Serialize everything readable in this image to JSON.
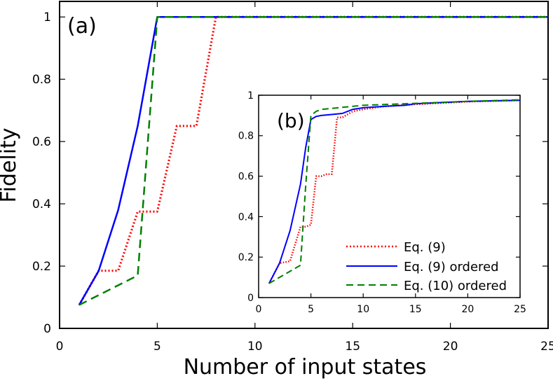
{
  "chart_data": [
    {
      "type": "line",
      "panel_label": "(a)",
      "xlabel": "Number of input states",
      "ylabel": "Fidelity",
      "xlim": [
        0,
        25
      ],
      "ylim": [
        0,
        1.05
      ],
      "x_ticks": [
        "0",
        "5",
        "10",
        "15",
        "20",
        "25"
      ],
      "y_ticks": [
        "0",
        "0.2",
        "0.4",
        "0.6",
        "0.8",
        "1"
      ],
      "series": [
        {
          "key": "eq9",
          "color": "#ff0000",
          "style": "dotted",
          "x": [
            1,
            2,
            3,
            4,
            5,
            6,
            7,
            8,
            9,
            10,
            15,
            20,
            25
          ],
          "y": [
            0.075,
            0.185,
            0.185,
            0.375,
            0.375,
            0.65,
            0.65,
            1.0,
            1.0,
            1.0,
            1.0,
            1.0,
            1.0
          ]
        },
        {
          "key": "eq9_ordered",
          "color": "#0000ff",
          "style": "solid",
          "x": [
            1,
            2,
            3,
            4,
            5,
            10,
            15,
            20,
            25
          ],
          "y": [
            0.075,
            0.185,
            0.38,
            0.65,
            1.0,
            1.0,
            1.0,
            1.0,
            1.0
          ]
        },
        {
          "key": "eq10_ordered",
          "color": "#007f00",
          "style": "dashed",
          "x": [
            1,
            4,
            5,
            10,
            15,
            20,
            25
          ],
          "y": [
            0.075,
            0.17,
            1.0,
            1.0,
            1.0,
            1.0,
            1.0
          ]
        }
      ]
    },
    {
      "type": "line",
      "panel_label": "(b)",
      "xlim": [
        0,
        25
      ],
      "ylim": [
        0,
        1
      ],
      "x_ticks": [
        "0",
        "5",
        "10",
        "15",
        "20",
        "25"
      ],
      "y_ticks": [
        "0",
        "0.2",
        "0.4",
        "0.6",
        "0.8",
        "1"
      ],
      "legend_position": "bottom-right",
      "legend": [
        "Eq. (9)",
        "Eq. (9) ordered",
        "Eq. (10) ordered"
      ],
      "series": [
        {
          "key": "eq9",
          "label": "Eq. (9)",
          "color": "#ff0000",
          "style": "dotted",
          "x": [
            1,
            2,
            3,
            4,
            4.5,
            5,
            5.5,
            6,
            6.5,
            7,
            7.5,
            8,
            9,
            10,
            12,
            15,
            18,
            20,
            25
          ],
          "y": [
            0.07,
            0.17,
            0.18,
            0.35,
            0.35,
            0.36,
            0.6,
            0.6,
            0.61,
            0.61,
            0.89,
            0.89,
            0.92,
            0.93,
            0.945,
            0.955,
            0.963,
            0.968,
            0.975
          ]
        },
        {
          "key": "eq9_ordered",
          "label": "Eq. (9) ordered",
          "color": "#0000ff",
          "style": "solid",
          "x": [
            1,
            2,
            3,
            4,
            4.5,
            5,
            5.5,
            6,
            7,
            8,
            9,
            10,
            12,
            14,
            15,
            18,
            20,
            25
          ],
          "y": [
            0.07,
            0.17,
            0.33,
            0.56,
            0.74,
            0.88,
            0.895,
            0.9,
            0.905,
            0.91,
            0.93,
            0.938,
            0.945,
            0.95,
            0.958,
            0.965,
            0.97,
            0.975
          ]
        },
        {
          "key": "eq10_ordered",
          "label": "Eq. (10) ordered",
          "color": "#007f00",
          "style": "dashed",
          "x": [
            1,
            4,
            4.5,
            5,
            5.5,
            6,
            8,
            10,
            15,
            20,
            25
          ],
          "y": [
            0.07,
            0.16,
            0.55,
            0.9,
            0.92,
            0.93,
            0.94,
            0.95,
            0.96,
            0.97,
            0.977
          ]
        }
      ]
    }
  ]
}
